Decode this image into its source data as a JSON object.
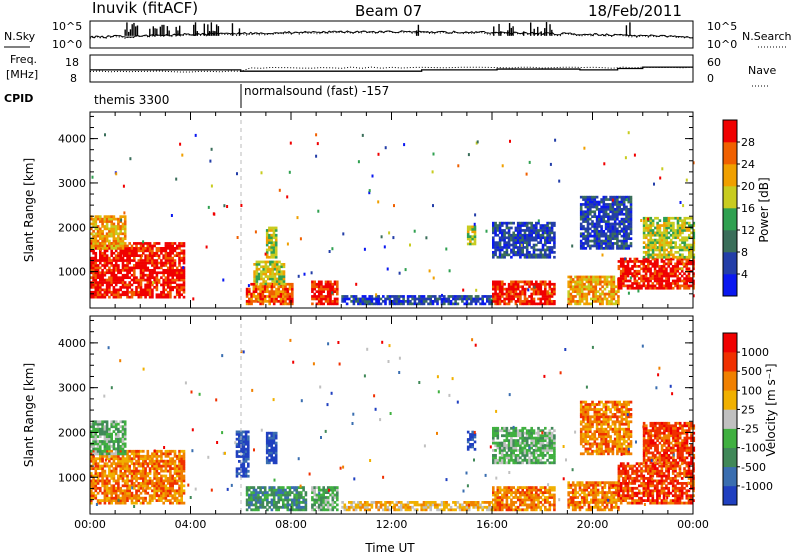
{
  "header": {
    "site": "Inuvik (fitACF)",
    "beam": "Beam 07",
    "date": "18/Feb/2011"
  },
  "summary": {
    "nsky_label": "N.Sky",
    "nsearch_label": "N.Search",
    "freq_label_line1": "Freq.",
    "freq_label_line2": "[MHz]",
    "nave_label": "Nave",
    "cpid_label": "CPID",
    "noise_ticks": [
      "10^5",
      "10^0"
    ],
    "freq_ticks": [
      "18",
      "8"
    ],
    "nave_ticks": [
      "60",
      "0"
    ],
    "cpid_segments": [
      {
        "name": "themis 3300",
        "start_hour": 0
      },
      {
        "name": "normalsound (fast) -157",
        "start_hour": 6
      }
    ]
  },
  "chart_data": [
    {
      "type": "heatmap",
      "title": "",
      "xlabel": "",
      "ylabel": "Slant Range [km]",
      "xlim": [
        0,
        24
      ],
      "ylim": [
        180,
        4600
      ],
      "x_ticks": [
        0,
        4,
        8,
        12,
        16,
        20,
        24
      ],
      "y_ticks": [
        1000,
        2000,
        3000,
        4000
      ],
      "colorbar": {
        "label": "Power [dB]",
        "ticks": [
          4,
          8,
          12,
          16,
          20,
          24,
          28
        ],
        "colors": [
          "#0a18f0",
          "#233ea8",
          "#3a6e5a",
          "#2fa050",
          "#c8cc20",
          "#f0a000",
          "#f06000",
          "#f00000"
        ]
      },
      "regions": [
        {
          "t0": 0.0,
          "t1": 3.7,
          "r0": 400,
          "r1": 1650,
          "level": 7
        },
        {
          "t0": 0.0,
          "t1": 1.4,
          "r0": 1500,
          "r1": 2250,
          "level": 5
        },
        {
          "t0": 6.2,
          "t1": 8.0,
          "r0": 250,
          "r1": 700,
          "level": 6
        },
        {
          "t0": 6.5,
          "t1": 7.7,
          "r0": 700,
          "r1": 1200,
          "level": 4
        },
        {
          "t0": 7.0,
          "t1": 7.4,
          "r0": 1300,
          "r1": 2000,
          "level": 4
        },
        {
          "t0": 8.8,
          "t1": 9.8,
          "r0": 250,
          "r1": 800,
          "level": 7
        },
        {
          "t0": 10.0,
          "t1": 16.0,
          "r0": 250,
          "r1": 450,
          "level": 1
        },
        {
          "t0": 15.0,
          "t1": 15.3,
          "r0": 1600,
          "r1": 2000,
          "level": 4
        },
        {
          "t0": 16.0,
          "t1": 18.5,
          "r0": 250,
          "r1": 800,
          "level": 7
        },
        {
          "t0": 16.0,
          "t1": 18.5,
          "r0": 1300,
          "r1": 2100,
          "level": 1
        },
        {
          "t0": 19.0,
          "t1": 21.0,
          "r0": 250,
          "r1": 900,
          "level": 5
        },
        {
          "t0": 21.0,
          "t1": 24.0,
          "r0": 600,
          "r1": 1300,
          "level": 7
        },
        {
          "t0": 22.0,
          "t1": 24.0,
          "r0": 1300,
          "r1": 2200,
          "level": 4
        },
        {
          "t0": 19.5,
          "t1": 21.5,
          "r0": 1500,
          "r1": 2700,
          "level": 1
        }
      ]
    },
    {
      "type": "heatmap",
      "title": "",
      "xlabel": "Time UT",
      "ylabel": "Slant Range [km]",
      "xlim": [
        0,
        24
      ],
      "ylim": [
        180,
        4600
      ],
      "x_ticks": [
        0,
        4,
        8,
        12,
        16,
        20,
        24
      ],
      "x_tick_labels": [
        "00:00",
        "04:00",
        "08:00",
        "12:00",
        "16:00",
        "20:00",
        "00:00"
      ],
      "y_ticks": [
        1000,
        2000,
        3000,
        4000
      ],
      "colorbar": {
        "label": "Velocity [m s⁻¹]",
        "ticks": [
          "1000",
          "500",
          "100",
          "25",
          "-25",
          "-100",
          "-500",
          "-1000"
        ],
        "colors": [
          "#2040c0",
          "#3a6eb0",
          "#408858",
          "#40b040",
          "#c0c0c0",
          "#f0b000",
          "#f08000",
          "#f03000",
          "#f00000"
        ]
      },
      "regions": [
        {
          "t0": 0.0,
          "t1": 3.7,
          "r0": 400,
          "r1": 1600,
          "level": 6
        },
        {
          "t0": 0.0,
          "t1": 1.4,
          "r0": 1500,
          "r1": 2250,
          "level": 3
        },
        {
          "t0": 5.8,
          "t1": 6.3,
          "r0": 1000,
          "r1": 2000,
          "level": 0
        },
        {
          "t0": 7.0,
          "t1": 7.4,
          "r0": 1300,
          "r1": 2000,
          "level": 0
        },
        {
          "t0": 6.2,
          "t1": 8.6,
          "r0": 250,
          "r1": 800,
          "level": 2
        },
        {
          "t0": 8.8,
          "t1": 9.8,
          "r0": 250,
          "r1": 800,
          "level": 3
        },
        {
          "t0": 10.0,
          "t1": 16.0,
          "r0": 250,
          "r1": 450,
          "level": 5
        },
        {
          "t0": 15.0,
          "t1": 15.3,
          "r0": 1600,
          "r1": 2000,
          "level": 0
        },
        {
          "t0": 16.0,
          "t1": 18.5,
          "r0": 250,
          "r1": 800,
          "level": 6
        },
        {
          "t0": 16.0,
          "t1": 18.5,
          "r0": 1300,
          "r1": 2100,
          "level": 3
        },
        {
          "t0": 19.0,
          "t1": 21.0,
          "r0": 250,
          "r1": 900,
          "level": 6
        },
        {
          "t0": 21.0,
          "t1": 24.0,
          "r0": 400,
          "r1": 1300,
          "level": 7
        },
        {
          "t0": 22.0,
          "t1": 24.0,
          "r0": 1300,
          "r1": 2200,
          "level": 7
        },
        {
          "t0": 19.5,
          "t1": 21.5,
          "r0": 1500,
          "r1": 2700,
          "level": 6
        }
      ]
    }
  ]
}
